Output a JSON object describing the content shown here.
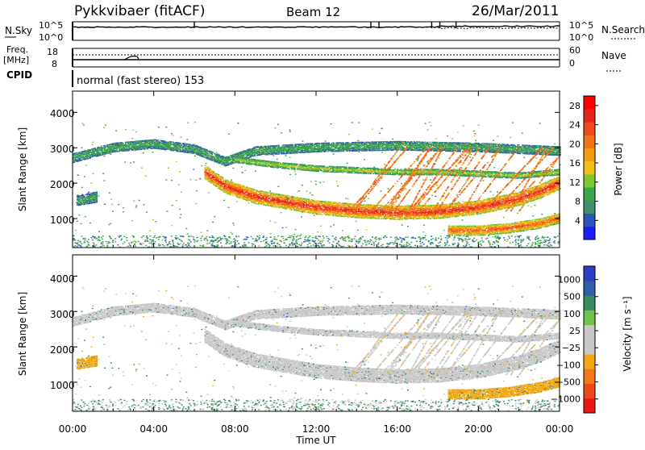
{
  "header": {
    "station": "Pykkvibaer (fitACF)",
    "beam": "Beam 12",
    "date": "26/Mar/2011",
    "cpid": "normal (fast stereo) 153"
  },
  "noise_panel": {
    "left_label": "N.Sky",
    "left_ticks": [
      "10^5",
      "10^0"
    ],
    "right_label": "N.Search",
    "right_ticks": [
      "10^5",
      "10^0"
    ]
  },
  "freq_panel": {
    "left_label_1": "Freq.",
    "left_label_2": "[MHz]",
    "left_ticks": [
      "18",
      "8"
    ],
    "right_label": "Nave",
    "right_ticks": [
      "60",
      "0"
    ],
    "cpid_label": "CPID"
  },
  "x_axis": {
    "label": "Time UT",
    "ticks": [
      "00:00",
      "04:00",
      "08:00",
      "12:00",
      "16:00",
      "20:00",
      "00:00"
    ],
    "hours": [
      0,
      4,
      8,
      12,
      16,
      20,
      24
    ]
  },
  "y_axis": {
    "label": "Slant Range [km]",
    "ticks": [
      "1000",
      "2000",
      "3000",
      "4000"
    ],
    "values": [
      1000,
      2000,
      3000,
      4000
    ],
    "range_km": [
      180,
      4600
    ]
  },
  "power_scale": {
    "label": "Power [dB]",
    "ticks": [
      "4",
      "8",
      "12",
      "16",
      "20",
      "24",
      "28"
    ],
    "colors": [
      "#1a1aff",
      "#2a56b8",
      "#3f8f6a",
      "#39a846",
      "#7cc832",
      "#f0c018",
      "#f39d10",
      "#f2741a",
      "#ee4a1c",
      "#e6241e",
      "#ff0000"
    ]
  },
  "velocity_scale": {
    "label": "Velocity [m s⁻¹]",
    "ticks": [
      "1000",
      "500",
      "100",
      "25",
      "−25",
      "−100",
      "−500",
      "−1000"
    ],
    "colors": [
      "#2a3fbf",
      "#2e5fa8",
      "#3a8a5e",
      "#71c24e",
      "#c8c8c8",
      "#c8c8c8",
      "#f0a818",
      "#f07a18",
      "#e84a18",
      "#e81818"
    ]
  },
  "chart_data": {
    "type": "heatmap",
    "title": "Pykkvibaer (fitACF) Beam 12 26/Mar/2011",
    "xlabel": "Time UT",
    "ylabel": "Slant Range [km]",
    "xlim": [
      0,
      24
    ],
    "ylim": [
      180,
      4600
    ],
    "panels": [
      {
        "name": "Power [dB]",
        "clim": [
          0,
          30
        ],
        "features": [
          {
            "id": "upper_band",
            "t": [
              0,
              2,
              4,
              6,
              7.5,
              9,
              12,
              16,
              20,
              24
            ],
            "range": [
              2700,
              3000,
              3100,
              2950,
              2600,
              2900,
              3000,
              3050,
              3000,
              2900
            ],
            "width_km": 260,
            "power_db": 9
          },
          {
            "id": "main_band",
            "t": [
              6.5,
              7.5,
              9,
              10.5,
              12,
              14,
              16,
              18,
              20,
              22,
              23,
              24
            ],
            "range": [
              2300,
              1900,
              1600,
              1450,
              1300,
              1200,
              1150,
              1180,
              1300,
              1550,
              1750,
              2000
            ],
            "width_km": 380,
            "power_db": 27
          },
          {
            "id": "mid_band",
            "t": [
              8,
              10,
              12,
              14,
              16,
              18,
              20,
              22,
              24
            ],
            "range": [
              2650,
              2500,
              2400,
              2350,
              2300,
              2300,
              2250,
              2200,
              2300
            ],
            "width_km": 160,
            "power_db": 14
          },
          {
            "id": "short_range_echo",
            "t": [
              18.5,
              20,
              21.5,
              23,
              24
            ],
            "range": [
              650,
              650,
              720,
              850,
              1000
            ],
            "width_km": 280,
            "power_db": 24
          },
          {
            "id": "early_low_patch",
            "t": [
              0.2,
              0.7,
              1.2
            ],
            "range": [
              1500,
              1550,
              1600
            ],
            "width_km": 300,
            "power_db": 8
          },
          {
            "id": "afternoon_spikes",
            "t_range": [
              13.5,
              23
            ],
            "range_km": [
              1200,
              3000
            ],
            "power_db": 21
          }
        ]
      },
      {
        "name": "Velocity [m s⁻¹]",
        "clim": [
          -1000,
          1000
        ],
        "features": [
          {
            "id": "main_band",
            "velocity_ms": 0
          },
          {
            "id": "upper_band",
            "velocity_ms": 0
          },
          {
            "id": "short_range_echo",
            "velocity_ms": -200
          },
          {
            "id": "early_low_patch",
            "velocity_ms": -100
          },
          {
            "id": "scattered_positive",
            "velocity_ms": 150
          }
        ]
      }
    ]
  }
}
